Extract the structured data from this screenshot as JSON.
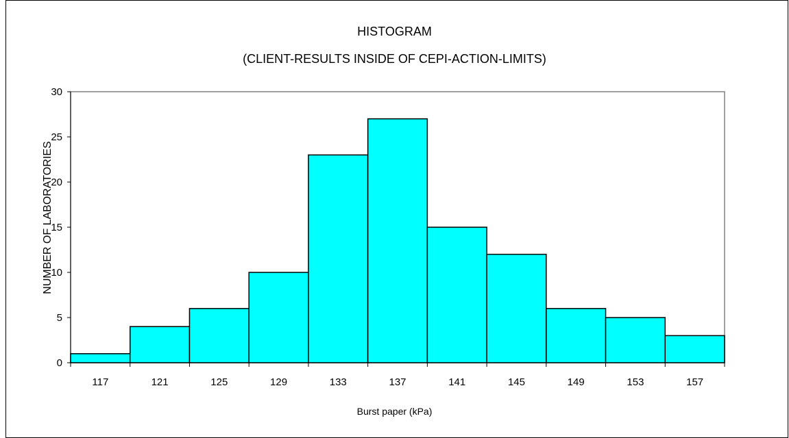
{
  "chart_data": {
    "type": "bar",
    "title": "HISTOGRAM",
    "subtitle": "(CLIENT-RESULTS INSIDE OF CEPI-ACTION-LIMITS)",
    "xlabel": "Burst paper (kPa)",
    "ylabel": "NUMBER OF LABORATORIES",
    "categories": [
      "117",
      "121",
      "125",
      "129",
      "133",
      "137",
      "141",
      "145",
      "149",
      "153",
      "157"
    ],
    "values": [
      1,
      4,
      6,
      10,
      23,
      27,
      15,
      12,
      6,
      5,
      3
    ],
    "ylim": [
      0,
      30
    ],
    "yticks": [
      "0",
      "5",
      "10",
      "15",
      "20",
      "25",
      "30"
    ],
    "grid": false,
    "legend": "none",
    "bar_color": "#00ffff"
  }
}
